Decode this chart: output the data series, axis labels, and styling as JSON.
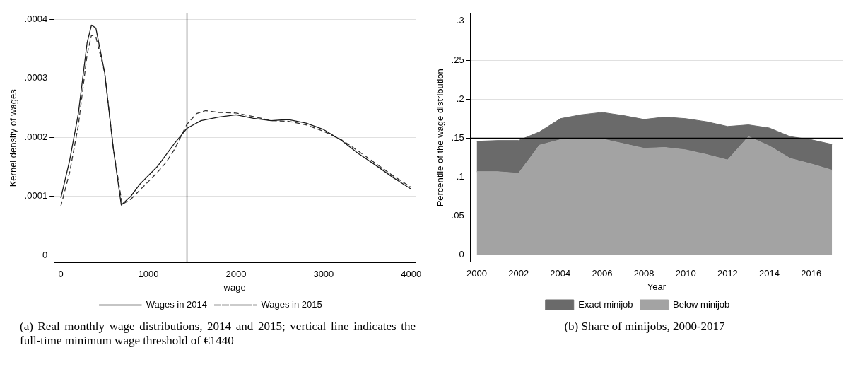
{
  "chart_data": [
    {
      "type": "line",
      "xlabel": "wage",
      "ylabel": "Kernel density of wages",
      "xlim": [
        -80,
        4050
      ],
      "ylim": [
        -1.3e-05,
        0.00041
      ],
      "xticks": [
        0,
        1000,
        2000,
        3000,
        4000
      ],
      "yticks": [
        {
          "value": 0,
          "label": "0"
        },
        {
          "value": 0.0001,
          "label": ".0001"
        },
        {
          "value": 0.0002,
          "label": ".0002"
        },
        {
          "value": 0.0003,
          "label": ".0003"
        },
        {
          "value": 0.0004,
          "label": ".0004"
        }
      ],
      "grid": "y",
      "legend": "bottom",
      "marker": "none",
      "ref_lines": [
        {
          "axis": "x",
          "value": 1440,
          "color": "#000000"
        }
      ],
      "annotations": [
        "(a) Real monthly wage distributions, 2014 and 2015; vertical line indicates the full-time minimum wage threshold of €1440"
      ],
      "series": [
        {
          "name": "Wages in 2014",
          "color": "#1a1a1a",
          "line_style": "solid",
          "x": [
            0,
            100,
            200,
            300,
            350,
            400,
            500,
            600,
            690,
            800,
            900,
            1000,
            1100,
            1200,
            1300,
            1440,
            1600,
            1800,
            2000,
            2200,
            2400,
            2600,
            2800,
            3000,
            3200,
            3400,
            3600,
            3800,
            4000
          ],
          "values": [
            9.7e-05,
            0.00016,
            0.00024,
            0.00036,
            0.00039,
            0.000385,
            0.00031,
            0.00018,
            8.5e-05,
            0.0001,
            0.00012,
            0.000135,
            0.00015,
            0.00017,
            0.00019,
            0.000215,
            0.000228,
            0.000234,
            0.000238,
            0.000232,
            0.000228,
            0.00023,
            0.000224,
            0.000213,
            0.000195,
            0.000172,
            0.000152,
            0.000131,
            0.000112
          ]
        },
        {
          "name": "Wages in 2015",
          "color": "#333333",
          "line_style": "dashed",
          "x": [
            0,
            100,
            200,
            300,
            350,
            400,
            500,
            600,
            700,
            800,
            900,
            1000,
            1100,
            1200,
            1300,
            1440,
            1550,
            1650,
            1800,
            2000,
            2200,
            2400,
            2600,
            2800,
            3000,
            3200,
            3400,
            3600,
            3800,
            4000
          ],
          "values": [
            8.3e-05,
            0.00014,
            0.00022,
            0.00034,
            0.000373,
            0.00037,
            0.00031,
            0.00018,
            8.6e-05,
            9.5e-05,
            0.00011,
            0.000125,
            0.00014,
            0.000157,
            0.00018,
            0.000222,
            0.00024,
            0.000245,
            0.000242,
            0.000241,
            0.000235,
            0.000228,
            0.000227,
            0.000221,
            0.00021,
            0.000196,
            0.000176,
            0.000155,
            0.000134,
            0.000115
          ]
        }
      ]
    },
    {
      "type": "area",
      "stacked": true,
      "xlabel": "Year",
      "ylabel": "Percentile of the wage distribution",
      "xlim": [
        1999.7,
        2017.5
      ],
      "ylim": [
        -0.009,
        0.31
      ],
      "xticks": [
        2000,
        2002,
        2004,
        2006,
        2008,
        2010,
        2012,
        2014,
        2016
      ],
      "yticks": [
        {
          "value": 0,
          "label": "0"
        },
        {
          "value": 0.05,
          "label": ".05"
        },
        {
          "value": 0.1,
          "label": ".1"
        },
        {
          "value": 0.15,
          "label": ".15"
        },
        {
          "value": 0.2,
          "label": ".2"
        },
        {
          "value": 0.25,
          "label": ".25"
        },
        {
          "value": 0.3,
          "label": ".3"
        }
      ],
      "grid": "y",
      "legend": "bottom",
      "ref_lines": [
        {
          "axis": "y",
          "value": 0.15,
          "color": "#000000"
        }
      ],
      "annotations": [
        "(b) Share of minijobs, 2000-2017"
      ],
      "x": [
        2000,
        2001,
        2002,
        2003,
        2004,
        2005,
        2006,
        2007,
        2008,
        2009,
        2010,
        2011,
        2012,
        2013,
        2014,
        2015,
        2016,
        2017
      ],
      "series": [
        {
          "name": "Below minijob",
          "color": "#a3a3a3",
          "values": [
            0.107,
            0.107,
            0.105,
            0.141,
            0.148,
            0.149,
            0.149,
            0.143,
            0.137,
            0.138,
            0.135,
            0.129,
            0.122,
            0.152,
            0.14,
            0.124,
            0.117,
            0.109
          ]
        },
        {
          "name": "Exact minijob",
          "color": "#6a6a6a",
          "values": [
            0.039,
            0.04,
            0.042,
            0.017,
            0.027,
            0.031,
            0.034,
            0.036,
            0.037,
            0.039,
            0.04,
            0.042,
            0.043,
            0.015,
            0.023,
            0.028,
            0.031,
            0.033
          ]
        }
      ]
    }
  ]
}
